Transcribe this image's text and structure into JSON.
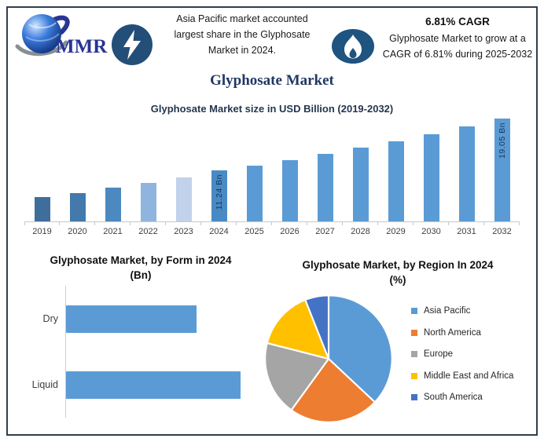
{
  "header": {
    "logo_text": "MMR",
    "asia_note": "Asia Pacific market accounted largest share in the Glyphosate Market in 2024.",
    "cagr_headline": "6.81% CAGR",
    "cagr_note": "Glyphosate Market to grow at a CAGR of 6.81% during 2025-2032",
    "icons": {
      "logo": "globe-icon",
      "left_badge": "lightning-icon",
      "right_badge": "flame-icon"
    }
  },
  "title": "Glyphosate Market",
  "colors": {
    "frame_border": "#323e4f",
    "title_navy": "#1f3864",
    "badge_blue": "#234e78",
    "primary_bar_blue": "#5b9bd5"
  },
  "chart_data": [
    {
      "type": "bar",
      "title": "Glyphosate Market size in USD Billion (2019-2032)",
      "unit": "USD Billion",
      "categories": [
        "2019",
        "2020",
        "2021",
        "2022",
        "2023",
        "2024",
        "2025",
        "2026",
        "2027",
        "2028",
        "2029",
        "2030",
        "2031",
        "2032"
      ],
      "values": [
        7.2,
        7.8,
        8.6,
        9.3,
        10.2,
        11.24,
        12.01,
        12.82,
        13.7,
        14.63,
        15.63,
        16.69,
        17.83,
        19.05
      ],
      "point_labels": {
        "2024": "11.24 Bn",
        "2032": "19.05 Bn"
      },
      "bar_colors": [
        "#3f6e9c",
        "#4379ab",
        "#4c89c0",
        "#8fb5de",
        "#c2d2ea",
        "#4a8ac4",
        "#5b9bd5",
        "#5b9bd5",
        "#5b9bd5",
        "#5b9bd5",
        "#5b9bd5",
        "#5b9bd5",
        "#5b9bd5",
        "#5b9bd5"
      ],
      "ylim": [
        3.5,
        19.5
      ],
      "grid": false,
      "value_axis_visible": false
    },
    {
      "type": "bar",
      "orientation": "horizontal",
      "title": "Glyphosate Market, by Form in 2024",
      "unit_label": "(Bn)",
      "categories": [
        "Dry",
        "Liquid"
      ],
      "values": [
        4.8,
        6.4
      ],
      "bar_color": "#5b9bd5",
      "value_axis_visible": false
    },
    {
      "type": "pie",
      "title": "Glyphosate Market, by Region In 2024",
      "unit_label": "(%)",
      "labels": [
        "Asia Pacific",
        "North America",
        "Europe",
        "Middle East and Africa",
        "South America"
      ],
      "values": [
        37,
        23,
        19,
        15,
        6
      ],
      "colors": [
        "#5b9bd5",
        "#ed7d31",
        "#a5a5a5",
        "#ffc000",
        "#4472c4"
      ],
      "legend_position": "right"
    }
  ]
}
